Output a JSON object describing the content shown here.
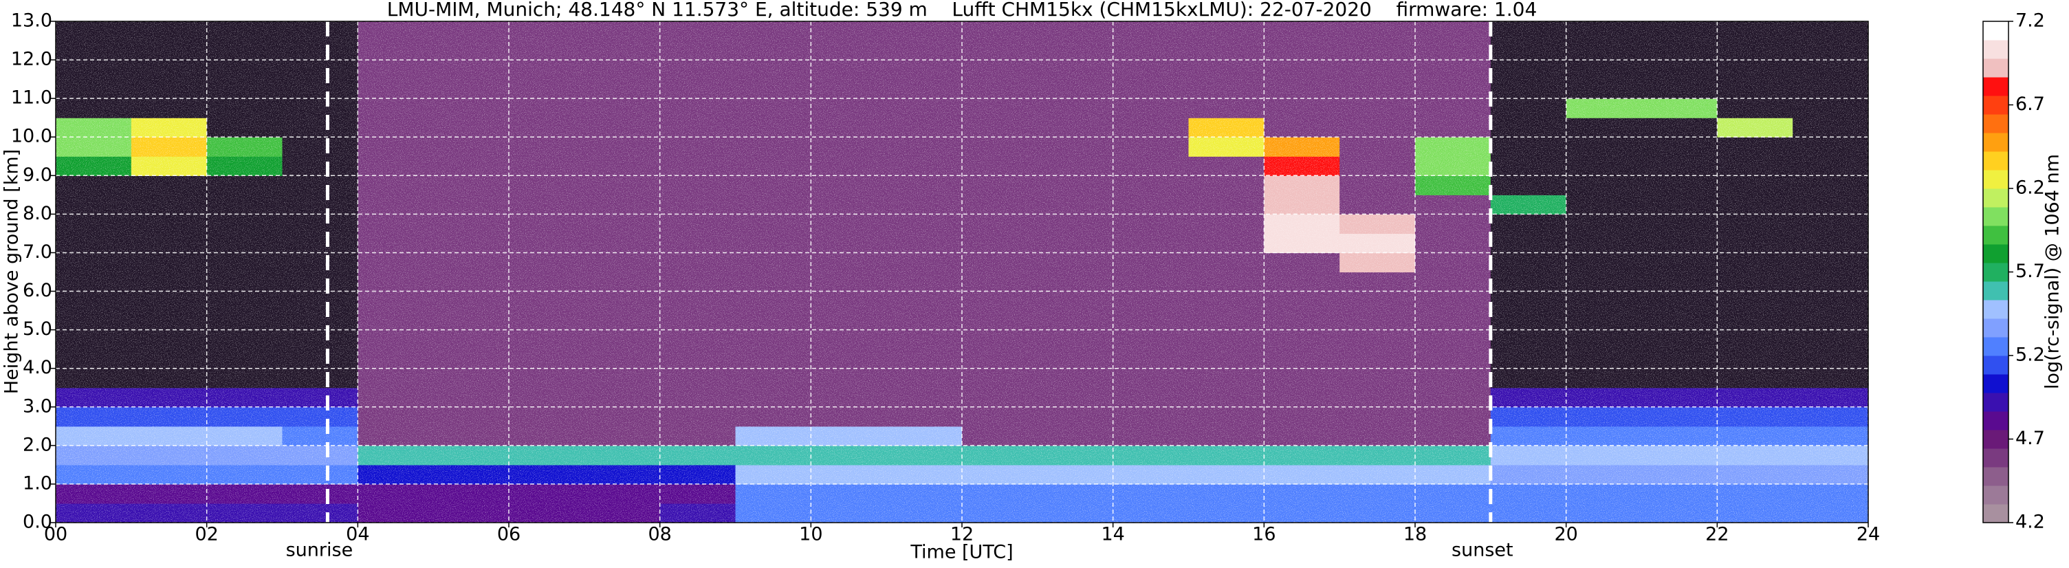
{
  "chart_data": {
    "type": "heatmap",
    "title": "LMU-MIM, Munich; 48.148° N 11.573° E, altitude: 539 m    Lufft CHM15kx (CHM15kxLMU): 22-07-2020    firmware: 1.04",
    "xlabel": "Time [UTC]",
    "ylabel": "Height above ground [km]",
    "colorbar_label": "log(rc-signal) @ 1064 nm",
    "xlim": [
      0,
      24
    ],
    "xticks": [
      {
        "value": 0,
        "label": "00"
      },
      {
        "value": 2,
        "label": "02"
      },
      {
        "value": 4,
        "label": "04"
      },
      {
        "value": 6,
        "label": "06"
      },
      {
        "value": 8,
        "label": "08"
      },
      10,
      12,
      14,
      16,
      18,
      20,
      22,
      24
    ],
    "ylim": [
      0,
      13
    ],
    "yticks": [
      {
        "value": 0,
        "label": "0.0"
      },
      {
        "value": 1,
        "label": "1.0"
      },
      {
        "value": 2,
        "label": "2.0"
      },
      {
        "value": 3,
        "label": "3.0"
      },
      {
        "value": 4,
        "label": "4.0"
      },
      {
        "value": 5,
        "label": "5.0"
      },
      {
        "value": 6,
        "label": "6.0"
      },
      {
        "value": 7,
        "label": "7.0"
      },
      {
        "value": 8,
        "label": "8.0"
      },
      {
        "value": 9,
        "label": "9.0"
      },
      {
        "value": 10,
        "label": "10.0"
      },
      {
        "value": 11,
        "label": "11.0"
      },
      {
        "value": 12,
        "label": "12.0"
      },
      {
        "value": 13,
        "label": "13.0"
      }
    ],
    "clim": [
      4.2,
      7.2
    ],
    "cticks": [
      4.2,
      4.7,
      5.2,
      5.7,
      6.2,
      6.7,
      7.2
    ],
    "grid": true,
    "x_edges": [
      0,
      1,
      2,
      3,
      4,
      5,
      6,
      7,
      8,
      9,
      10,
      11,
      12,
      13,
      14,
      15,
      16,
      17,
      18,
      19,
      20,
      21,
      22,
      23,
      24
    ],
    "y_edges": [
      0,
      0.5,
      1,
      1.5,
      2,
      2.5,
      3,
      3.5,
      4,
      4.5,
      5,
      5.5,
      6,
      6.5,
      7,
      7.5,
      8,
      8.5,
      9,
      9.5,
      10,
      10.5,
      11,
      11.5,
      12,
      12.5,
      13
    ],
    "z": [
      [
        4.9,
        4.9,
        4.9,
        4.9,
        4.8,
        4.8,
        4.8,
        4.8,
        4.9,
        5.3,
        5.3,
        5.3,
        5.3,
        5.3,
        5.3,
        5.3,
        5.3,
        5.3,
        5.3,
        5.2,
        5.2,
        5.2,
        5.2,
        5.2
      ],
      [
        4.8,
        4.8,
        4.8,
        4.8,
        4.8,
        4.8,
        4.8,
        4.8,
        4.8,
        5.3,
        5.3,
        5.3,
        5.3,
        5.3,
        5.3,
        5.3,
        5.3,
        5.3,
        5.3,
        5.2,
        5.2,
        5.2,
        5.2,
        5.2
      ],
      [
        5.3,
        5.3,
        5.3,
        5.3,
        5.0,
        5.0,
        5.0,
        5.0,
        5.0,
        5.5,
        5.5,
        5.5,
        5.5,
        5.5,
        5.5,
        5.5,
        5.5,
        5.5,
        5.5,
        5.35,
        5.35,
        5.35,
        5.35,
        5.35
      ],
      [
        5.35,
        5.35,
        5.35,
        5.35,
        5.6,
        5.6,
        5.6,
        5.6,
        5.6,
        5.55,
        5.55,
        5.55,
        5.55,
        5.55,
        5.55,
        5.55,
        5.55,
        5.55,
        5.55,
        5.5,
        5.5,
        5.5,
        5.5,
        5.5
      ],
      [
        5.45,
        5.45,
        5.45,
        5.3,
        4.6,
        4.6,
        4.6,
        4.6,
        4.6,
        5.5,
        5.5,
        5.5,
        4.6,
        4.6,
        4.6,
        4.6,
        4.6,
        4.6,
        4.6,
        5.2,
        5.2,
        5.2,
        5.2,
        5.2
      ],
      [
        5.1,
        5.1,
        5.1,
        5.1,
        4.6,
        4.6,
        4.6,
        4.6,
        4.6,
        4.6,
        4.6,
        4.6,
        4.6,
        4.6,
        4.6,
        4.6,
        4.6,
        4.6,
        4.6,
        5.1,
        5.1,
        5.1,
        5.1,
        5.1
      ],
      [
        4.9,
        4.9,
        4.9,
        4.9,
        4.6,
        4.6,
        4.6,
        4.6,
        4.6,
        4.6,
        4.6,
        4.6,
        4.6,
        4.6,
        4.6,
        4.6,
        4.6,
        4.6,
        4.6,
        4.9,
        4.9,
        4.9,
        4.9,
        4.9
      ],
      [
        4.0,
        4.0,
        4.0,
        4.0,
        4.6,
        4.6,
        4.6,
        4.6,
        4.6,
        4.6,
        4.6,
        4.6,
        4.6,
        4.6,
        4.6,
        4.6,
        4.6,
        4.6,
        4.6,
        4.0,
        4.0,
        4.0,
        4.0,
        4.0
      ],
      [
        4.0,
        4.0,
        4.0,
        4.0,
        4.6,
        4.6,
        4.6,
        4.6,
        4.6,
        4.6,
        4.6,
        4.6,
        4.6,
        4.6,
        4.6,
        4.6,
        4.6,
        4.6,
        4.6,
        4.0,
        4.0,
        4.0,
        4.0,
        4.0
      ],
      [
        4.0,
        4.0,
        4.0,
        4.0,
        4.6,
        4.6,
        4.6,
        4.6,
        4.6,
        4.6,
        4.6,
        4.6,
        4.6,
        4.6,
        4.6,
        4.6,
        4.6,
        4.6,
        4.6,
        4.0,
        4.0,
        4.0,
        4.0,
        4.0
      ],
      [
        4.0,
        4.0,
        4.0,
        4.0,
        4.6,
        4.6,
        4.6,
        4.6,
        4.6,
        4.6,
        4.6,
        4.6,
        4.6,
        4.6,
        4.6,
        4.6,
        4.6,
        4.6,
        4.6,
        4.0,
        4.0,
        4.0,
        4.0,
        4.0
      ],
      [
        4.0,
        4.0,
        4.0,
        4.0,
        4.6,
        4.6,
        4.6,
        4.6,
        4.6,
        4.6,
        4.6,
        4.6,
        4.6,
        4.6,
        4.6,
        4.6,
        4.6,
        4.6,
        4.6,
        4.0,
        4.0,
        4.0,
        4.0,
        4.0
      ],
      [
        4.0,
        4.0,
        4.0,
        4.0,
        4.6,
        4.6,
        4.6,
        4.6,
        4.6,
        4.6,
        4.6,
        4.6,
        4.6,
        4.6,
        4.6,
        4.6,
        4.6,
        4.6,
        4.6,
        4.0,
        4.0,
        4.0,
        4.0,
        4.0
      ],
      [
        4.0,
        4.0,
        4.0,
        4.0,
        4.6,
        4.6,
        4.6,
        4.6,
        4.6,
        4.6,
        4.6,
        4.6,
        4.6,
        4.6,
        4.6,
        4.6,
        4.6,
        6.9,
        4.6,
        4.0,
        4.0,
        4.0,
        4.0,
        4.0
      ],
      [
        4.0,
        4.0,
        4.0,
        4.0,
        4.6,
        4.6,
        4.6,
        4.6,
        4.6,
        4.6,
        4.6,
        4.6,
        4.6,
        4.6,
        4.6,
        4.6,
        7.0,
        7.0,
        4.6,
        4.0,
        4.0,
        4.0,
        4.0,
        4.0
      ],
      [
        4.0,
        4.0,
        4.0,
        4.0,
        4.6,
        4.6,
        4.6,
        4.6,
        4.6,
        4.6,
        4.6,
        4.6,
        4.6,
        4.6,
        4.6,
        4.6,
        7.0,
        6.9,
        4.6,
        4.0,
        4.0,
        4.0,
        4.0,
        4.0
      ],
      [
        4.0,
        4.0,
        4.0,
        4.0,
        4.6,
        4.6,
        4.6,
        4.6,
        4.6,
        4.6,
        4.6,
        4.6,
        4.6,
        4.6,
        4.6,
        4.6,
        6.9,
        4.6,
        4.6,
        5.7,
        4.0,
        4.0,
        4.0,
        4.0
      ],
      [
        4.0,
        4.0,
        4.0,
        4.0,
        4.6,
        4.6,
        4.6,
        4.6,
        4.6,
        4.6,
        4.6,
        4.6,
        4.6,
        4.6,
        4.6,
        4.6,
        6.9,
        4.6,
        5.9,
        4.0,
        4.0,
        4.0,
        4.0,
        4.0
      ],
      [
        5.8,
        6.3,
        5.8,
        4.0,
        4.6,
        4.6,
        4.6,
        4.6,
        4.6,
        4.6,
        4.6,
        4.6,
        4.6,
        4.6,
        4.6,
        4.6,
        6.8,
        4.6,
        6.0,
        4.0,
        4.0,
        4.0,
        4.0,
        4.0
      ],
      [
        6.0,
        6.4,
        5.9,
        4.0,
        4.6,
        4.6,
        4.6,
        4.6,
        4.6,
        4.6,
        4.6,
        4.6,
        4.6,
        4.6,
        4.6,
        6.2,
        6.5,
        4.6,
        6.0,
        4.0,
        4.0,
        4.0,
        4.0,
        4.0
      ],
      [
        6.0,
        6.3,
        4.0,
        4.0,
        4.6,
        4.6,
        4.6,
        4.6,
        4.6,
        4.6,
        4.6,
        4.6,
        4.6,
        4.6,
        4.6,
        6.4,
        4.6,
        4.6,
        4.6,
        4.0,
        4.0,
        4.0,
        6.1,
        4.0
      ],
      [
        4.0,
        4.0,
        4.0,
        4.0,
        4.6,
        4.6,
        4.6,
        4.6,
        4.6,
        4.6,
        4.6,
        4.6,
        4.6,
        4.6,
        4.6,
        4.6,
        4.6,
        4.6,
        4.6,
        4.0,
        6.0,
        6.0,
        4.0,
        4.0
      ],
      [
        4.0,
        4.0,
        4.0,
        4.0,
        4.6,
        4.6,
        4.6,
        4.6,
        4.6,
        4.6,
        4.6,
        4.6,
        4.6,
        4.6,
        4.6,
        4.6,
        4.6,
        4.6,
        4.6,
        4.0,
        4.0,
        4.0,
        4.0,
        4.0
      ],
      [
        4.0,
        4.0,
        4.0,
        4.0,
        4.6,
        4.6,
        4.6,
        4.6,
        4.6,
        4.6,
        4.6,
        4.6,
        4.6,
        4.6,
        4.6,
        4.6,
        4.6,
        4.6,
        4.6,
        4.0,
        4.0,
        4.0,
        4.0,
        4.0
      ],
      [
        4.0,
        4.0,
        4.0,
        4.0,
        4.6,
        4.6,
        4.6,
        4.6,
        4.6,
        4.6,
        4.6,
        4.6,
        4.6,
        4.6,
        4.6,
        4.6,
        4.6,
        4.6,
        4.6,
        4.0,
        4.0,
        4.0,
        4.0,
        4.0
      ],
      [
        4.0,
        4.0,
        4.0,
        4.0,
        4.6,
        4.6,
        4.6,
        4.6,
        4.6,
        4.6,
        4.6,
        4.6,
        4.6,
        4.6,
        4.6,
        4.6,
        4.6,
        4.6,
        4.6,
        4.0,
        4.0,
        4.0,
        4.0,
        4.0
      ]
    ],
    "colormap": [
      "#a8909f",
      "#9c7a98",
      "#8d5e8c",
      "#7a3a80",
      "#6a1a78",
      "#5a0a90",
      "#3a10b0",
      "#1010d0",
      "#3050f0",
      "#5080ff",
      "#80a0ff",
      "#a0c0ff",
      "#40c0b0",
      "#20b060",
      "#10a030",
      "#40c040",
      "#80e060",
      "#c0f060",
      "#f0f040",
      "#ffd020",
      "#ffa010",
      "#ff7010",
      "#ff4010",
      "#ff1010",
      "#f0c0c0",
      "#f8e0e0",
      "#ffffff"
    ],
    "under_color": "#22162a",
    "annotations": [
      {
        "text": "sunrise",
        "x": 3.6
      },
      {
        "text": "sunset",
        "x": 19.0
      }
    ]
  }
}
